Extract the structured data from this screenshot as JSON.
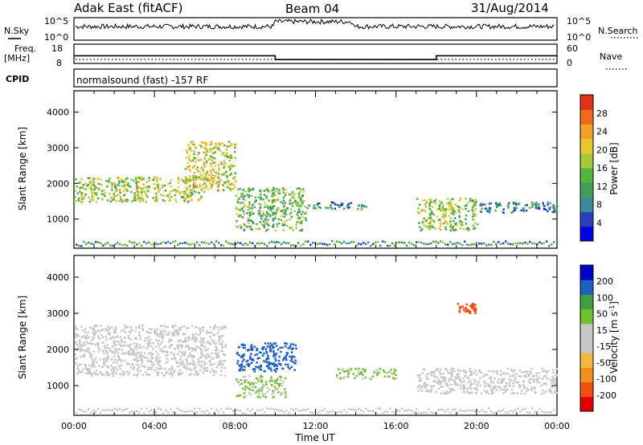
{
  "header": {
    "radar": "Adak East (fitACF)",
    "beam": "Beam 04",
    "date": "31/Aug/2014",
    "program": "normalsound (fast) -157 RF"
  },
  "top_panels": {
    "nsky_label": "N.Sky",
    "nsky_top_tick": "10^5",
    "nsky_bottom_tick": "10^0",
    "nsearch_label": "N.Search",
    "nsearch_top_tick": "10^5",
    "nsearch_bottom_tick": "10^0",
    "freq_label": "Freq.",
    "freq_unit": "[MHz]",
    "freq_ticks": [
      "18",
      "8"
    ],
    "nave_label": "Nave",
    "nave_ticks": [
      "60",
      "0"
    ],
    "cpid_label": "CPID"
  },
  "colors": {
    "power_scale": [
      "#0000e6",
      "#2a3fb8",
      "#3a8a9a",
      "#3e9e5a",
      "#54b43c",
      "#a8c83c",
      "#e8c832",
      "#f2a028",
      "#ee6a1e",
      "#e03218"
    ],
    "velocity_scale": [
      "#e00000",
      "#f05010",
      "#f09020",
      "#f0b840",
      "#c8c8c8",
      "#c8c8c8",
      "#70c030",
      "#40a040",
      "#2060c0",
      "#0000c8"
    ]
  },
  "chart_data": [
    {
      "type": "line",
      "title": "",
      "xlabel": "",
      "ylabel": "Freq. [MHz]",
      "x": [
        "00:00",
        "10:00",
        "18:00",
        "24:00"
      ],
      "series": [
        {
          "name": "Freq.",
          "values": [
            12,
            10,
            12,
            12
          ]
        }
      ],
      "ylim": [
        8,
        18
      ]
    },
    {
      "type": "heatmap",
      "title": "",
      "xlabel": "Time UT",
      "ylabel": "Slant Range [km]",
      "colorbar_label": "Power [dB]",
      "colorbar_ticks": [
        "28",
        "24",
        "20",
        "16",
        "12",
        "8",
        "4"
      ],
      "yticks": [
        "1000",
        "2000",
        "3000",
        "4000"
      ],
      "xticks": [
        "00:00",
        "04:00",
        "08:00",
        "12:00",
        "16:00",
        "20:00",
        "00:00"
      ],
      "xlim": [
        0,
        24
      ],
      "ylim": [
        180,
        4600
      ],
      "clim": [
        0,
        32
      ],
      "regions": [
        {
          "t0": 0.0,
          "t1": 6.5,
          "r0": 1500,
          "r1": 2200,
          "level": 18
        },
        {
          "t0": 5.5,
          "t1": 8.0,
          "r0": 1800,
          "r1": 3200,
          "level": 20
        },
        {
          "t0": 8.0,
          "t1": 11.5,
          "r0": 700,
          "r1": 1900,
          "level": 14
        },
        {
          "t0": 11.5,
          "t1": 14.5,
          "r0": 1300,
          "r1": 1500,
          "level": 8
        },
        {
          "t0": 17.0,
          "t1": 20.0,
          "r0": 700,
          "r1": 1600,
          "level": 16
        },
        {
          "t0": 20.0,
          "t1": 24.0,
          "r0": 1200,
          "r1": 1500,
          "level": 8
        }
      ]
    },
    {
      "type": "heatmap",
      "title": "",
      "xlabel": "Time UT",
      "ylabel": "Slant Range [km]",
      "colorbar_label": "Velocity [m s^-1]",
      "colorbar_ticks": [
        "200",
        "100",
        "50",
        "15",
        "-15",
        "-50",
        "-100",
        "-200"
      ],
      "yticks": [
        "1000",
        "2000",
        "3000",
        "4000"
      ],
      "xticks": [
        "00:00",
        "04:00",
        "08:00",
        "12:00",
        "16:00",
        "20:00",
        "00:00"
      ],
      "xlim": [
        0,
        24
      ],
      "ylim": [
        180,
        4600
      ],
      "clim": [
        -250,
        250
      ],
      "regions": [
        {
          "t0": 0.0,
          "t1": 7.5,
          "r0": 1300,
          "r1": 2700,
          "velocity": 0
        },
        {
          "t0": 8.0,
          "t1": 11.0,
          "r0": 1400,
          "r1": 2200,
          "velocity": 200
        },
        {
          "t0": 8.0,
          "t1": 10.5,
          "r0": 700,
          "r1": 1300,
          "velocity": 60
        },
        {
          "t0": 13.0,
          "t1": 16.0,
          "r0": 1200,
          "r1": 1500,
          "velocity": 60
        },
        {
          "t0": 17.0,
          "t1": 24.0,
          "r0": 800,
          "r1": 1500,
          "velocity": 0
        },
        {
          "t0": 19.0,
          "t1": 20.0,
          "r0": 3000,
          "r1": 3300,
          "velocity": -200
        }
      ]
    }
  ]
}
